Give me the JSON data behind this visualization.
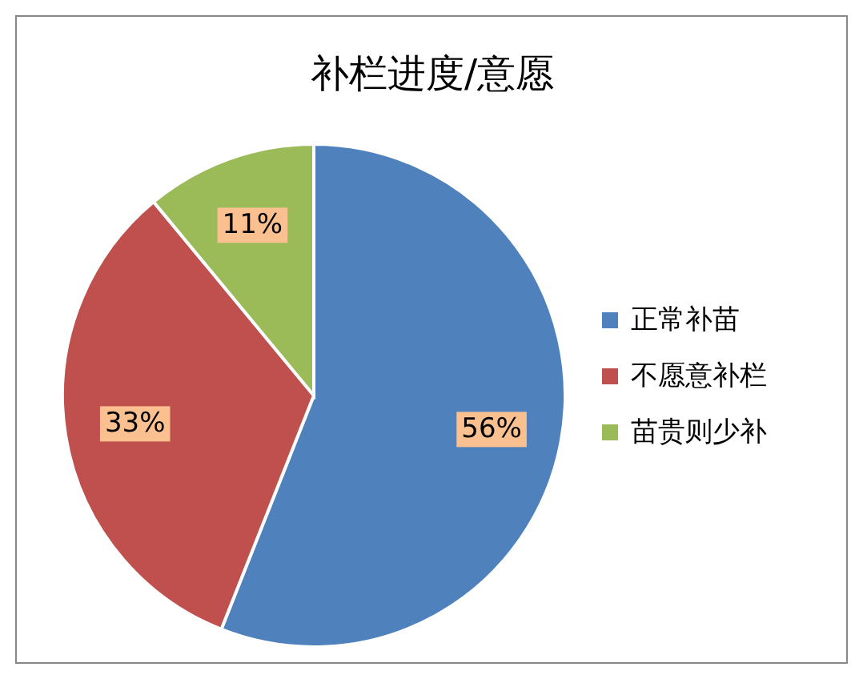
{
  "chart_data": {
    "type": "pie",
    "title": "补栏进度/意愿",
    "categories": [
      "正常补苗",
      "不愿意补栏",
      "苗贵则少补"
    ],
    "values": [
      56,
      33,
      11
    ],
    "colors": [
      "#4f81bd",
      "#c0504d",
      "#9bbb59"
    ],
    "value_labels": [
      "56%",
      "33%",
      "11%"
    ],
    "legend": "right"
  }
}
